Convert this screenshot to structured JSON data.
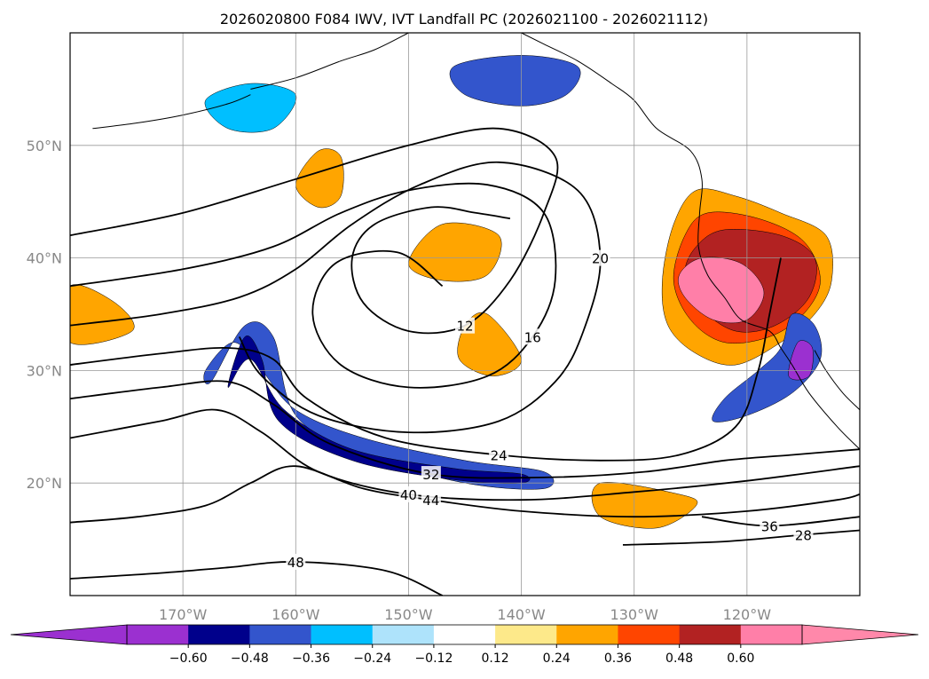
{
  "chart_data": {
    "type": "heatmap",
    "title": "2026020800 F084 IWV, IVT Landfall PC (2026021100 - 2026021112)",
    "x_ticks": [
      {
        "value": -170,
        "label": "170°W"
      },
      {
        "value": -160,
        "label": "160°W"
      },
      {
        "value": -150,
        "label": "150°W"
      },
      {
        "value": -140,
        "label": "140°W"
      },
      {
        "value": -130,
        "label": "130°W"
      },
      {
        "value": -120,
        "label": "120°W"
      }
    ],
    "y_ticks": [
      {
        "value": 20,
        "label": "20°N"
      },
      {
        "value": 30,
        "label": "30°N"
      },
      {
        "value": 40,
        "label": "40°N"
      },
      {
        "value": 50,
        "label": "50°N"
      }
    ],
    "xlim": [
      -180,
      -110
    ],
    "ylim": [
      10,
      60
    ],
    "grid": true,
    "colorbar": {
      "extend": "both",
      "boundaries": [
        -0.72,
        -0.6,
        -0.48,
        -0.36,
        -0.24,
        -0.12,
        0.12,
        0.24,
        0.36,
        0.48,
        0.6,
        0.72
      ],
      "tick_labels": [
        "−0.60",
        "−0.48",
        "−0.36",
        "−0.24",
        "−0.12",
        "0.12",
        "0.24",
        "0.36",
        "0.48",
        "0.60"
      ],
      "colors": [
        "#9b30d0",
        "#00008b",
        "#3355cc",
        "#00bfff",
        "#aee3fb",
        "#ffffff",
        "#fde98a",
        "#ffa500",
        "#ff4500",
        "#b22222",
        "#ff7fa8"
      ],
      "under_color": "#9b30d0",
      "over_color": "#ff88aa"
    },
    "fill_regions": [
      {
        "name": "na-positive-outer",
        "value": 0.3,
        "polygon": [
          [
            -124.5,
            46
          ],
          [
            -121,
            45.5
          ],
          [
            -117,
            44
          ],
          [
            -113,
            42
          ],
          [
            -112.5,
            38
          ],
          [
            -114,
            35
          ],
          [
            -117,
            32.5
          ],
          [
            -121,
            30.5
          ],
          [
            -124.5,
            31.5
          ],
          [
            -127,
            34
          ],
          [
            -127.5,
            38
          ],
          [
            -126.5,
            43
          ]
        ]
      },
      {
        "name": "na-positive-mid",
        "value": 0.42,
        "polygon": [
          [
            -123.5,
            44
          ],
          [
            -119,
            43.5
          ],
          [
            -115,
            41.5
          ],
          [
            -113.5,
            38
          ],
          [
            -115,
            35
          ],
          [
            -118,
            33
          ],
          [
            -122,
            32.5
          ],
          [
            -125,
            34.5
          ],
          [
            -126.5,
            38
          ],
          [
            -125.5,
            42
          ]
        ]
      },
      {
        "name": "na-positive-dark",
        "value": 0.55,
        "polygon": [
          [
            -122,
            42.5
          ],
          [
            -117,
            42
          ],
          [
            -114,
            40
          ],
          [
            -114.5,
            36.5
          ],
          [
            -117.5,
            34
          ],
          [
            -121,
            33.5
          ],
          [
            -124,
            35.5
          ],
          [
            -125.5,
            38.5
          ],
          [
            -124.5,
            41
          ]
        ]
      },
      {
        "name": "na-positive-core",
        "value": 0.65,
        "polygon": [
          [
            -124,
            40
          ],
          [
            -120.5,
            39.5
          ],
          [
            -118.5,
            37
          ],
          [
            -120,
            34.5
          ],
          [
            -123,
            34.5
          ],
          [
            -125.5,
            36.5
          ],
          [
            -126,
            38.5
          ]
        ]
      },
      {
        "name": "subtropical-negative-jet",
        "value": -0.45,
        "polygon": [
          [
            -167.5,
            29
          ],
          [
            -164.5,
            34
          ],
          [
            -162,
            33
          ],
          [
            -160,
            26
          ],
          [
            -154,
            22.5
          ],
          [
            -145,
            20
          ],
          [
            -138,
            19.5
          ],
          [
            -138,
            21
          ],
          [
            -145,
            22
          ],
          [
            -154,
            24
          ],
          [
            -160,
            26.5
          ],
          [
            -163,
            30
          ],
          [
            -165.5,
            32.5
          ],
          [
            -168,
            30
          ]
        ]
      },
      {
        "name": "jet-negative-core",
        "value": -0.58,
        "polygon": [
          [
            -166,
            28.5
          ],
          [
            -164.5,
            33
          ],
          [
            -163,
            31
          ],
          [
            -161.5,
            25.5
          ],
          [
            -155,
            22
          ],
          [
            -146,
            20.3
          ],
          [
            -140,
            20
          ],
          [
            -140,
            20.8
          ],
          [
            -146,
            21.3
          ],
          [
            -155,
            23
          ],
          [
            -161,
            26.5
          ],
          [
            -164,
            31
          ]
        ]
      },
      {
        "name": "sw-coast-negative",
        "value": -0.4,
        "polygon": [
          [
            -116,
            35
          ],
          [
            -114,
            34
          ],
          [
            -113.5,
            31
          ],
          [
            -116,
            28
          ],
          [
            -120,
            26
          ],
          [
            -123,
            25.5
          ],
          [
            -122,
            27.5
          ],
          [
            -119,
            30
          ],
          [
            -117,
            32
          ]
        ]
      },
      {
        "name": "sw-coast-purple",
        "value": -0.65,
        "polygon": [
          [
            -115.5,
            32.5
          ],
          [
            -114.2,
            32
          ],
          [
            -114.5,
            29.5
          ],
          [
            -116.3,
            29.5
          ]
        ]
      },
      {
        "name": "gulf-alaska-negative",
        "value": -0.38,
        "polygon": [
          [
            -146,
            57
          ],
          [
            -140,
            58
          ],
          [
            -135,
            57
          ],
          [
            -136,
            54.5
          ],
          [
            -140,
            53.5
          ],
          [
            -145,
            54.5
          ]
        ]
      },
      {
        "name": "aleutian-negative",
        "value": -0.28,
        "polygon": [
          [
            -168,
            54
          ],
          [
            -164,
            55.5
          ],
          [
            -160,
            54.5
          ],
          [
            -162,
            51.5
          ],
          [
            -166,
            51.5
          ]
        ]
      },
      {
        "name": "subtrop-positive-a",
        "value": 0.28,
        "polygon": [
          [
            -147,
            43
          ],
          [
            -142,
            42
          ],
          [
            -143,
            38.5
          ],
          [
            -147,
            38
          ],
          [
            -150,
            39.5
          ]
        ]
      },
      {
        "name": "subtrop-positive-b",
        "value": 0.3,
        "polygon": [
          [
            -143,
            35
          ],
          [
            -140,
            31
          ],
          [
            -142.5,
            29.5
          ],
          [
            -145.5,
            31
          ],
          [
            -145,
            34
          ]
        ]
      },
      {
        "name": "ne-pacific-positive",
        "value": 0.3,
        "polygon": [
          [
            -158,
            49.5
          ],
          [
            -156,
            49
          ],
          [
            -156,
            45.5
          ],
          [
            -158,
            44.5
          ],
          [
            -160,
            46.5
          ]
        ]
      },
      {
        "name": "tropical-positive",
        "value": 0.35,
        "polygon": [
          [
            -133,
            20
          ],
          [
            -126,
            19
          ],
          [
            -124.5,
            18
          ],
          [
            -128,
            16
          ],
          [
            -133,
            17
          ]
        ]
      },
      {
        "name": "west-edge-positive",
        "value": 0.3,
        "polygon": [
          [
            -180,
            37.5
          ],
          [
            -176,
            36
          ],
          [
            -174.5,
            33.5
          ],
          [
            -180,
            32.5
          ]
        ]
      }
    ],
    "contours": {
      "colors": "#000000",
      "lines": [
        {
          "level": 12,
          "label": "12",
          "points": [
            [
              -180,
              42
            ],
            [
              -170,
              44
            ],
            [
              -160,
              47
            ],
            [
              -150,
              50
            ],
            [
              -142,
              51.5
            ],
            [
              -137,
              49
            ],
            [
              -138,
              44
            ],
            [
              -141,
              38
            ],
            [
              -145,
              34
            ],
            [
              -150,
              33.5
            ],
            [
              -154,
              36
            ],
            [
              -155,
              40
            ],
            [
              -153,
              43
            ],
            [
              -148,
              44.5
            ],
            [
              -144,
              44
            ],
            [
              -141,
              43.5
            ]
          ]
        },
        {
          "level": 16,
          "label": "16",
          "points": [
            [
              -180,
              37.5
            ],
            [
              -170,
              39
            ],
            [
              -162,
              41
            ],
            [
              -156,
              44
            ],
            [
              -150,
              46
            ],
            [
              -143,
              46.5
            ],
            [
              -138,
              44
            ],
            [
              -137,
              38
            ],
            [
              -139,
              33
            ],
            [
              -143,
              29.5
            ],
            [
              -150,
              28.5
            ],
            [
              -156,
              30.5
            ],
            [
              -158.5,
              35
            ],
            [
              -156.5,
              39.5
            ],
            [
              -151,
              40.5
            ],
            [
              -147,
              37.5
            ]
          ]
        },
        {
          "level": 20,
          "label": "20",
          "points": [
            [
              -180,
              34
            ],
            [
              -172,
              35
            ],
            [
              -165,
              36.5
            ],
            [
              -160,
              39
            ],
            [
              -155,
              43
            ],
            [
              -149,
              46.5
            ],
            [
              -142,
              48.5
            ],
            [
              -135,
              46
            ],
            [
              -133,
              40
            ],
            [
              -134.5,
              33.5
            ],
            [
              -137,
              29
            ],
            [
              -142,
              25.5
            ],
            [
              -150,
              24.5
            ],
            [
              -158,
              26
            ],
            [
              -163,
              29.5
            ],
            [
              -165,
              33
            ]
          ]
        },
        {
          "level": 24,
          "label": "24",
          "points": [
            [
              -180,
              30.5
            ],
            [
              -172,
              31.5
            ],
            [
              -166,
              32
            ],
            [
              -162,
              31
            ],
            [
              -159,
              27.5
            ],
            [
              -152,
              24
            ],
            [
              -142,
              22.5
            ],
            [
              -133,
              22
            ],
            [
              -126,
              22.5
            ],
            [
              -121,
              25
            ],
            [
              -119,
              30
            ],
            [
              -118,
              35
            ],
            [
              -117,
              40
            ]
          ]
        },
        {
          "level": 32,
          "label": "32",
          "points": [
            [
              -180,
              27.5
            ],
            [
              -172,
              28.5
            ],
            [
              -166,
              29
            ],
            [
              -162,
              27
            ],
            [
              -157,
              23.5
            ],
            [
              -148,
              20.8
            ],
            [
              -138,
              20.5
            ],
            [
              -129,
              21
            ],
            [
              -122,
              22
            ],
            [
              -116,
              22.5
            ],
            [
              -110,
              23
            ]
          ]
        },
        {
          "level": 40,
          "label": "40",
          "points": [
            [
              -180,
              24
            ],
            [
              -172,
              25.5
            ],
            [
              -167,
              26.5
            ],
            [
              -163,
              24.5
            ],
            [
              -158,
              21
            ],
            [
              -150,
              19
            ],
            [
              -140,
              18.5
            ],
            [
              -130,
              19.2
            ],
            [
              -120,
              20.2
            ],
            [
              -110,
              21.5
            ]
          ]
        },
        {
          "level": 44,
          "label": "44",
          "points": [
            [
              -180,
              16.5
            ],
            [
              -174,
              17
            ],
            [
              -168,
              18
            ],
            [
              -164,
              20
            ],
            [
              -160,
              21.5
            ],
            [
              -154,
              19.5
            ],
            [
              -148,
              18.5
            ],
            [
              -140,
              17.5
            ],
            [
              -130,
              17
            ],
            [
              -120,
              17.5
            ],
            [
              -112,
              18.5
            ],
            [
              -110,
              19
            ]
          ]
        },
        {
          "level": 36,
          "label": "36",
          "points": [
            [
              -124,
              17
            ],
            [
              -118,
              16.2
            ],
            [
              -110,
              17
            ]
          ]
        },
        {
          "level": 28,
          "label": "28",
          "points": [
            [
              -131,
              14.5
            ],
            [
              -122,
              14.8
            ],
            [
              -115,
              15.4
            ],
            [
              -110,
              15.8
            ]
          ]
        },
        {
          "level": 48,
          "label": "48",
          "points": [
            [
              -180,
              11.5
            ],
            [
              -172,
              12
            ],
            [
              -166,
              12.5
            ],
            [
              -160,
              13
            ],
            [
              -152,
              12.2
            ],
            [
              -147,
              10
            ]
          ]
        }
      ]
    }
  }
}
